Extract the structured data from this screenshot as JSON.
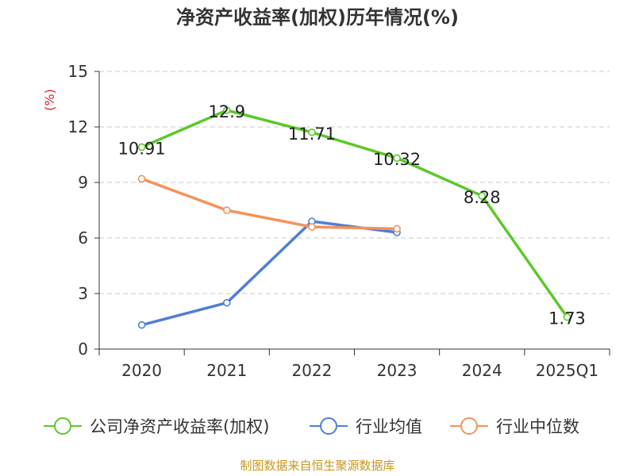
{
  "chart_data": {
    "type": "line",
    "title": "净资产收益率(加权)历年情况(%)",
    "ylabel": "(%)",
    "xlabel": "",
    "categories": [
      "2020",
      "2021",
      "2022",
      "2023",
      "2024",
      "2025Q1"
    ],
    "ylim": [
      0,
      15
    ],
    "yticks": [
      0,
      3,
      6,
      9,
      12,
      15
    ],
    "grid": true,
    "legend_position": "bottom",
    "series": [
      {
        "name": "公司净资产收益率(加权)",
        "color": "#5cc82a",
        "values": [
          10.91,
          12.9,
          11.71,
          10.32,
          8.28,
          1.73
        ],
        "labels": [
          "10.91",
          "12.9",
          "11.71",
          "10.32",
          "8.28",
          "1.73"
        ]
      },
      {
        "name": "行业均值",
        "color": "#4f7fd6",
        "values": [
          1.3,
          2.5,
          6.9,
          6.3,
          null,
          null
        ]
      },
      {
        "name": "行业中位数",
        "color": "#f4925a",
        "values": [
          9.2,
          7.5,
          6.6,
          6.5,
          null,
          null
        ]
      }
    ]
  },
  "source": "制图数据来自恒生聚源数据库",
  "colors": {
    "source_text": "#c8961e",
    "ylabel": "#d62728"
  }
}
